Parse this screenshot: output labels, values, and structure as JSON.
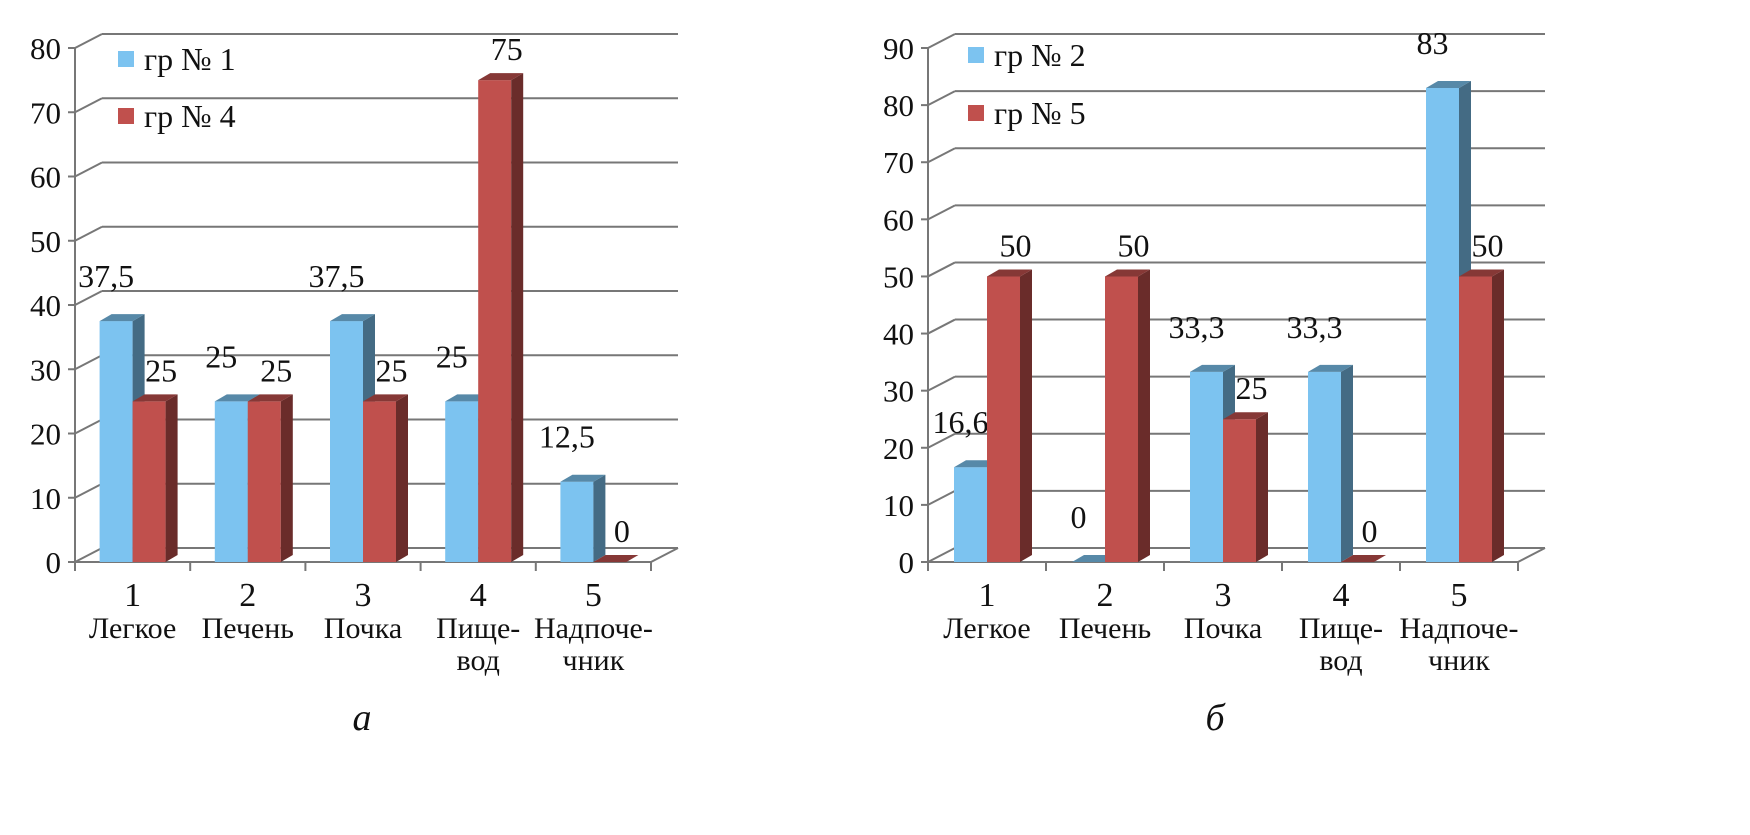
{
  "chart_data": [
    {
      "type": "bar",
      "panel_label": "а",
      "categories": [
        {
          "num": "1",
          "name": [
            "Легкое"
          ]
        },
        {
          "num": "2",
          "name": [
            "Печень"
          ]
        },
        {
          "num": "3",
          "name": [
            "Почка"
          ]
        },
        {
          "num": "4",
          "name": [
            "Пище-",
            "вод"
          ]
        },
        {
          "num": "5",
          "name": [
            "Надпоче-",
            "чник"
          ]
        }
      ],
      "series": [
        {
          "name": "гр № 1",
          "color": "#7CC3F0",
          "values": [
            37.5,
            25,
            37.5,
            25,
            12.5
          ],
          "labels": [
            "37,5",
            "25",
            "37,5",
            "25",
            "12,5"
          ]
        },
        {
          "name": "гр № 4",
          "color": "#C0504D",
          "values": [
            25,
            25,
            25,
            75,
            0
          ],
          "labels": [
            "25",
            "25",
            "25",
            "75",
            "0"
          ]
        }
      ],
      "ylim": [
        0,
        80
      ],
      "yticks": [
        0,
        10,
        20,
        30,
        40,
        50,
        60,
        70,
        80
      ],
      "grid": true,
      "legend": "top-left"
    },
    {
      "type": "bar",
      "panel_label": "б",
      "categories": [
        {
          "num": "1",
          "name": [
            "Легкое"
          ]
        },
        {
          "num": "2",
          "name": [
            "Печень"
          ]
        },
        {
          "num": "3",
          "name": [
            "Почка"
          ]
        },
        {
          "num": "4",
          "name": [
            "Пище-",
            "вод"
          ]
        },
        {
          "num": "5",
          "name": [
            "Надпоче-",
            "чник"
          ]
        }
      ],
      "series": [
        {
          "name": "гр № 2",
          "color": "#7CC3F0",
          "values": [
            16.6,
            0,
            33.3,
            33.3,
            83
          ],
          "labels": [
            "16,6",
            "0",
            "33,3",
            "33,3",
            "83"
          ]
        },
        {
          "name": "гр № 5",
          "color": "#C0504D",
          "values": [
            50,
            50,
            25,
            0,
            50
          ],
          "labels": [
            "50",
            "50",
            "25",
            "0",
            "50"
          ]
        }
      ],
      "ylim": [
        0,
        90
      ],
      "yticks": [
        0,
        10,
        20,
        30,
        40,
        50,
        60,
        70,
        80,
        90
      ],
      "grid": true,
      "legend": "top-left"
    }
  ]
}
